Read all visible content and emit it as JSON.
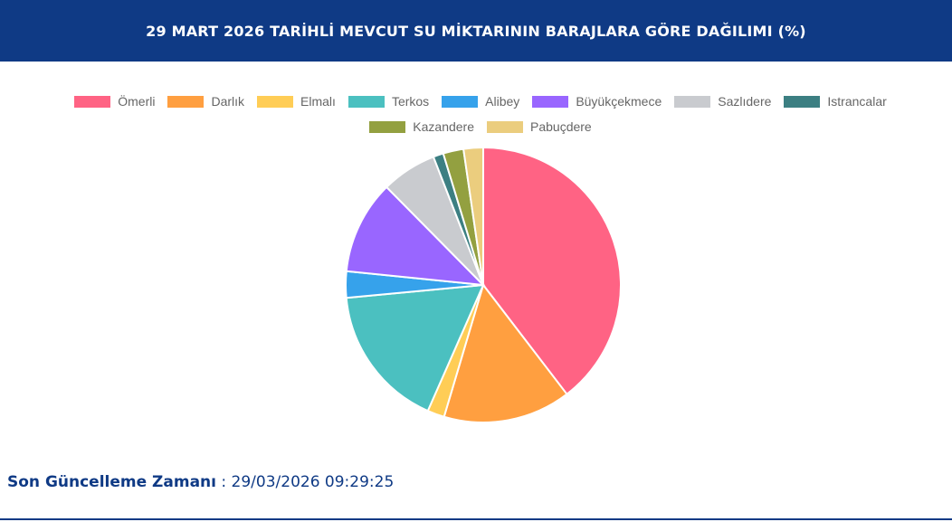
{
  "header": {
    "title": "29 MART 2026 TARİHLİ MEVCUT SU MİKTARININ BARAJLARA GÖRE DAĞILIMI (%)"
  },
  "chart_data": {
    "type": "pie",
    "title": "",
    "legend_position": "top",
    "categories": [
      "Ömerli",
      "Darlık",
      "Elmalı",
      "Terkos",
      "Alibey",
      "Büyükçekmece",
      "Sazlıdere",
      "Istrancalar",
      "Kazandere",
      "Pabuçdere"
    ],
    "values": [
      39.6,
      15.0,
      2.0,
      16.9,
      3.1,
      11.0,
      6.5,
      1.2,
      2.4,
      2.3
    ],
    "colors": [
      "#ff6384",
      "#ff9f40",
      "#ffcd56",
      "#4bc0c0",
      "#36a2eb",
      "#9966ff",
      "#c9cbcf",
      "#3c7f82",
      "#93a040",
      "#ebcd7e"
    ]
  },
  "footer": {
    "label": "Son Güncelleme Zamanı",
    "separator": " : ",
    "value": "29/03/2026 09:29:25"
  }
}
